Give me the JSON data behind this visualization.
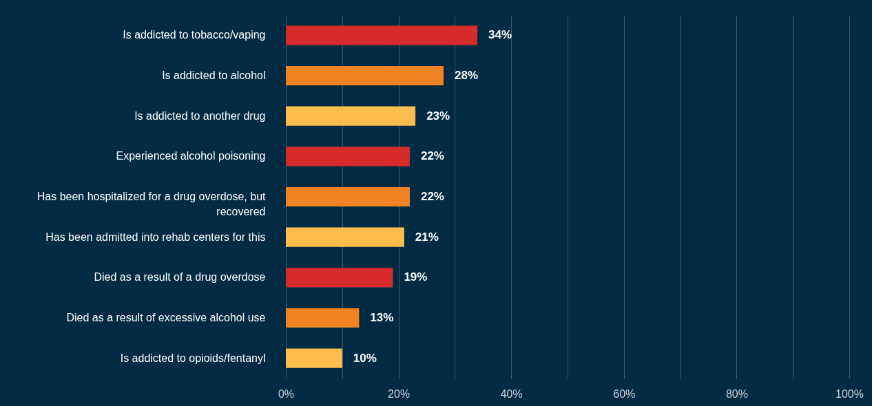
{
  "chart_data": {
    "type": "bar",
    "orientation": "horizontal",
    "categories": [
      "Is addicted to tobacco/vaping",
      "Is addicted to alcohol",
      "Is addicted to another drug",
      "Experienced alcohol poisoning",
      "Has been hospitalized for a drug overdose, but recovered",
      "Has been admitted into rehab centers for this",
      "Died as a result of a drug overdose",
      "Died as a result of excessive alcohol use",
      "Is addicted to opioids/fentanyl"
    ],
    "values": [
      34,
      28,
      23,
      22,
      22,
      21,
      19,
      13,
      10
    ],
    "value_labels": [
      "34%",
      "28%",
      "23%",
      "22%",
      "22%",
      "21%",
      "19%",
      "13%",
      "10%"
    ],
    "colors": [
      "#d62b2b",
      "#f28323",
      "#fbbd4b",
      "#d62b2b",
      "#f28323",
      "#fbbd4b",
      "#d62b2b",
      "#f28323",
      "#fbbd4b"
    ],
    "xlim": [
      0,
      100
    ],
    "xticks": [
      {
        "value": 0,
        "label": "0%"
      },
      {
        "value": 10,
        "label": null
      },
      {
        "value": 20,
        "label": "20%"
      },
      {
        "value": 30,
        "label": null
      },
      {
        "value": 40,
        "label": "40%"
      },
      {
        "value": 50,
        "label": null
      },
      {
        "value": 60,
        "label": "60%"
      },
      {
        "value": 70,
        "label": null
      },
      {
        "value": 80,
        "label": "80%"
      },
      {
        "value": 90,
        "label": null
      },
      {
        "value": 100,
        "label": "100%"
      }
    ],
    "grid": "x"
  }
}
